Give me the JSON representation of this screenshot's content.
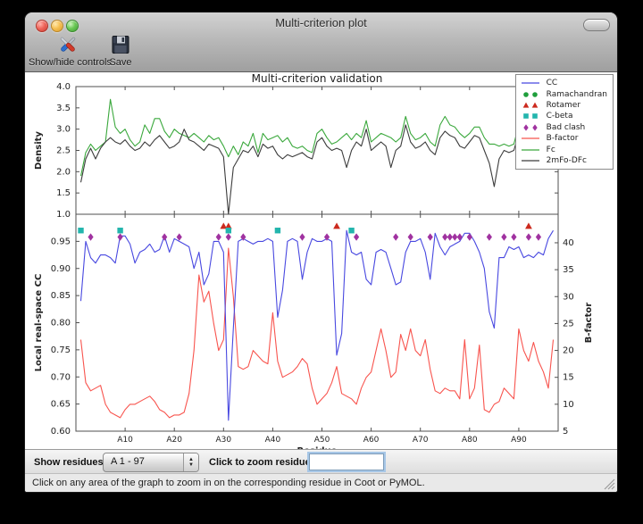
{
  "window": {
    "title": "Multi-criterion plot",
    "toolbar": {
      "show_hide_label": "Show/hide controls",
      "save_label": "Save"
    },
    "controls": {
      "show_residues_label": "Show residues:",
      "residue_range_value": "A  1 - 97",
      "zoom_residue_label": "Click to zoom residue:",
      "zoom_residue_input_value": ""
    },
    "status_text": "Click on any area of the graph to zoom in on the corresponding residue in Coot or PyMOL."
  },
  "chart_data": {
    "type": "line",
    "title": "Multi-criterion validation",
    "xlabel": "Residue",
    "x_tick_positions": [
      10,
      20,
      30,
      40,
      50,
      60,
      70,
      80,
      90
    ],
    "x_tick_labels": [
      "A10",
      "A20",
      "A30",
      "A40",
      "A50",
      "A60",
      "A70",
      "A80",
      "A90"
    ],
    "xlim": [
      0,
      98
    ],
    "residue_count": 97,
    "frame_color": "#4f4f4f",
    "tick_label_color": "#222222",
    "top_panel": {
      "ylabel": "Density",
      "ylim": [
        1.0,
        4.0
      ],
      "yticks": [
        1.0,
        1.5,
        2.0,
        2.5,
        3.0,
        3.5,
        4.0
      ],
      "series": [
        {
          "name": "Fc",
          "color": "#3aa83c",
          "values": [
            1.9,
            2.45,
            2.65,
            2.5,
            2.6,
            2.7,
            3.7,
            3.05,
            2.9,
            3.0,
            2.75,
            2.6,
            2.7,
            3.1,
            2.9,
            3.25,
            3.25,
            2.95,
            2.8,
            3.0,
            2.9,
            2.85,
            2.8,
            2.9,
            2.8,
            2.7,
            2.85,
            2.75,
            2.8,
            2.6,
            2.35,
            2.6,
            2.4,
            2.7,
            2.6,
            2.9,
            2.45,
            2.9,
            2.75,
            2.8,
            2.85,
            2.7,
            2.8,
            2.6,
            2.55,
            2.6,
            2.5,
            2.45,
            2.9,
            3.0,
            2.8,
            2.65,
            2.7,
            2.8,
            2.9,
            2.75,
            2.9,
            2.8,
            3.2,
            2.7,
            2.8,
            2.9,
            2.85,
            2.8,
            2.7,
            2.8,
            3.3,
            2.9,
            2.75,
            2.8,
            2.9,
            2.7,
            2.6,
            3.1,
            3.3,
            3.1,
            3.05,
            2.9,
            2.8,
            2.9,
            3.05,
            3.05,
            2.8,
            2.65,
            2.65,
            2.6,
            2.65,
            2.6,
            2.65,
            3.1,
            2.75,
            2.95,
            3.35,
            3.2,
            2.8,
            3.1,
            3.15
          ]
        },
        {
          "name": "2mFo-DFc",
          "color": "#3c3c3c",
          "values": [
            1.75,
            2.3,
            2.55,
            2.3,
            2.55,
            2.7,
            2.8,
            2.7,
            2.65,
            2.75,
            2.6,
            2.5,
            2.55,
            2.7,
            2.6,
            2.75,
            2.85,
            2.7,
            2.55,
            2.6,
            2.7,
            3.0,
            2.75,
            2.7,
            2.6,
            2.5,
            2.65,
            2.6,
            2.55,
            2.35,
            1.0,
            2.1,
            2.3,
            2.5,
            2.45,
            2.6,
            2.35,
            2.65,
            2.55,
            2.6,
            2.4,
            2.3,
            2.4,
            2.35,
            2.4,
            2.45,
            2.35,
            2.3,
            2.7,
            2.8,
            2.6,
            2.5,
            2.55,
            2.5,
            2.1,
            2.5,
            2.7,
            2.6,
            3.0,
            2.5,
            2.6,
            2.7,
            2.6,
            2.1,
            2.5,
            2.6,
            3.1,
            2.7,
            2.55,
            2.6,
            2.7,
            2.5,
            2.4,
            2.8,
            2.95,
            2.85,
            2.8,
            2.6,
            2.55,
            2.7,
            2.85,
            2.8,
            2.5,
            2.2,
            1.65,
            2.3,
            2.5,
            2.45,
            2.5,
            2.9,
            2.5,
            2.75,
            3.05,
            2.95,
            2.5,
            2.9,
            3.0
          ]
        }
      ]
    },
    "bottom_panel": {
      "ylabel_left": "Local real-space CC",
      "ylim_left": [
        0.6,
        1.0
      ],
      "yticks_left": [
        0.6,
        0.65,
        0.7,
        0.75,
        0.8,
        0.85,
        0.9,
        0.95
      ],
      "ylabel_right": "B-factor",
      "ylim_right": [
        5,
        45.3
      ],
      "yticks_right": [
        5,
        10,
        15,
        20,
        25,
        30,
        35,
        40
      ],
      "series": [
        {
          "name": "B-factor",
          "axis": "right",
          "color": "#f8544e",
          "values": [
            22,
            14,
            12.5,
            13,
            13.5,
            10,
            8.5,
            8,
            7.5,
            9,
            10,
            10,
            10.5,
            11,
            11.5,
            10.5,
            9,
            8.5,
            7.5,
            8,
            8,
            8.5,
            12,
            20,
            34,
            29,
            31,
            25,
            20,
            22,
            39,
            30,
            17,
            16.5,
            17,
            20,
            19,
            18,
            17.5,
            27,
            18,
            15,
            15.5,
            16,
            17,
            18.5,
            17.5,
            13,
            10,
            11,
            12,
            14,
            17,
            12,
            11.5,
            11,
            10,
            13,
            15,
            16,
            20,
            24,
            20,
            15,
            16,
            23,
            20,
            24,
            20,
            19,
            22,
            16.5,
            12.5,
            12,
            13,
            12.5,
            12.5,
            11,
            22,
            11,
            13,
            21,
            9,
            8.5,
            10,
            10.5,
            13,
            12,
            11,
            24,
            20,
            18,
            21.5,
            18,
            16,
            13,
            22
          ]
        },
        {
          "name": "CC",
          "axis": "left",
          "color": "#4848e0",
          "values": [
            0.84,
            0.95,
            0.92,
            0.91,
            0.925,
            0.925,
            0.92,
            0.91,
            0.96,
            0.96,
            0.945,
            0.91,
            0.93,
            0.935,
            0.945,
            0.93,
            0.935,
            0.96,
            0.93,
            0.955,
            0.95,
            0.945,
            0.94,
            0.9,
            0.93,
            0.87,
            0.89,
            0.95,
            0.95,
            0.93,
            0.62,
            0.79,
            0.95,
            0.955,
            0.95,
            0.945,
            0.95,
            0.95,
            0.955,
            0.95,
            0.81,
            0.86,
            0.95,
            0.955,
            0.95,
            0.88,
            0.93,
            0.955,
            0.95,
            0.95,
            0.955,
            0.95,
            0.74,
            0.78,
            0.97,
            0.93,
            0.925,
            0.93,
            0.88,
            0.87,
            0.93,
            0.935,
            0.93,
            0.9,
            0.87,
            0.875,
            0.93,
            0.95,
            0.95,
            0.955,
            0.93,
            0.88,
            0.965,
            0.94,
            0.925,
            0.94,
            0.945,
            0.95,
            0.965,
            0.965,
            0.95,
            0.93,
            0.9,
            0.82,
            0.79,
            0.92,
            0.92,
            0.94,
            0.935,
            0.94,
            0.92,
            0.925,
            0.92,
            0.93,
            0.925,
            0.955,
            0.97
          ]
        }
      ],
      "markers": [
        {
          "name": "Rotamer",
          "shape": "triangle",
          "color": "#cc2a1e",
          "y": 0.978,
          "residues": [
            30,
            31,
            53,
            92
          ]
        },
        {
          "name": "C-beta",
          "shape": "square",
          "color": "#23b5ad",
          "y": 0.97,
          "residues": [
            1,
            9,
            31,
            41,
            56
          ]
        },
        {
          "name": "Bad clash",
          "shape": "diamond",
          "color": "#a032a0",
          "y": 0.958,
          "residues": [
            3,
            9,
            18,
            21,
            29,
            31,
            34,
            46,
            51,
            57,
            65,
            68,
            72,
            75,
            76,
            77,
            78,
            80,
            84,
            87,
            89,
            92,
            94
          ]
        },
        {
          "name": "Ramachandran",
          "shape": "circle",
          "color": "#1f9e3c",
          "y": 0.978,
          "residues": []
        }
      ]
    },
    "legend": [
      {
        "label": "CC",
        "type": "line",
        "color": "#4848e0"
      },
      {
        "label": "Ramachandran",
        "type": "circle",
        "color": "#1f9e3c"
      },
      {
        "label": "Rotamer",
        "type": "triangle",
        "color": "#cc2a1e"
      },
      {
        "label": "C-beta",
        "type": "square",
        "color": "#23b5ad"
      },
      {
        "label": "Bad clash",
        "type": "diamond",
        "color": "#a032a0"
      },
      {
        "label": "B-factor",
        "type": "line",
        "color": "#f8544e"
      },
      {
        "label": "Fc",
        "type": "line",
        "color": "#3aa83c"
      },
      {
        "label": "2mFo-DFc",
        "type": "line",
        "color": "#3c3c3c"
      }
    ]
  }
}
